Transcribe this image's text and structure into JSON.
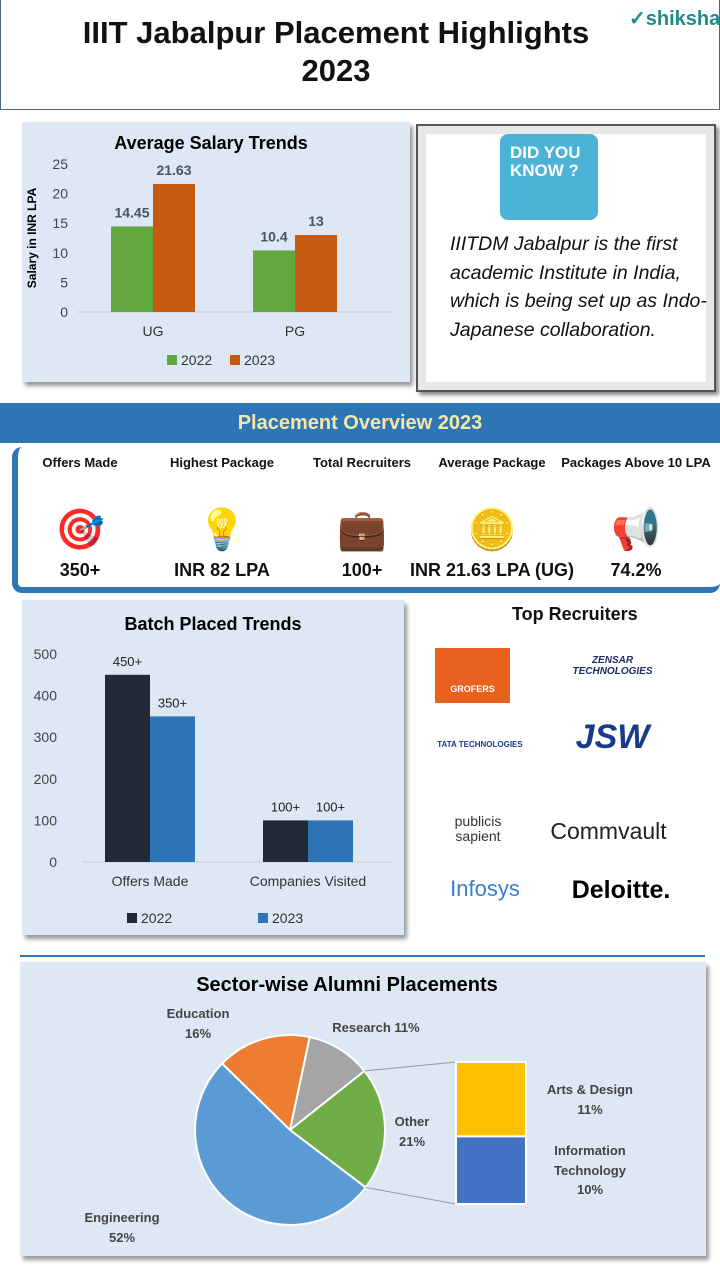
{
  "header": {
    "title": "IIIT Jabalpur Placement Highlights 2023",
    "logo_text": "shiksha"
  },
  "did_you_know": {
    "badge": "DID YOU KNOW ?",
    "text": "IIITDM Jabalpur is the first academic Institute in India, which is being set up as Indo-Japanese collaboration."
  },
  "overview": {
    "title": "Placement Overview 2023",
    "stats": [
      {
        "label": "Offers Made",
        "value": "350+",
        "icon": "target-icon"
      },
      {
        "label": "Highest Package",
        "value": "INR 82 LPA",
        "icon": "lightbulb-icon"
      },
      {
        "label": "Total Recruiters",
        "value": "100+",
        "icon": "briefcase-icon"
      },
      {
        "label": "Average Package",
        "value": "INR 21.63 LPA (UG)",
        "icon": "coins-icon"
      },
      {
        "label": "Packages Above 10 LPA",
        "value": "74.2%",
        "icon": "megaphone-icon"
      }
    ]
  },
  "recruiters": {
    "title": "Top Recruiters",
    "logos": [
      "GROFERS",
      "ZENSAR TECHNOLOGIES",
      "TATA TECHNOLOGIES",
      "JSW",
      "publicis sapient",
      "Commvault",
      "Infosys",
      "Deloitte."
    ]
  },
  "colors": {
    "c2022_salary": "#62a83e",
    "c2023_salary": "#c55a11",
    "c2022_batch": "#222a35",
    "c2023_batch": "#2e75b6",
    "banner": "#2e75b6"
  },
  "chart_data": [
    {
      "type": "bar",
      "title": "Average Salary Trends",
      "xlabel": "",
      "ylabel": "Salary in INR LPA",
      "ylim": [
        0,
        25
      ],
      "yticks": [
        "0",
        "5",
        "10",
        "15",
        "20",
        "25"
      ],
      "categories": [
        "UG",
        "PG"
      ],
      "series": [
        {
          "name": "2022",
          "values": [
            14.45,
            10.4
          ],
          "labels": [
            "14.45",
            "10.4"
          ]
        },
        {
          "name": "2023",
          "values": [
            21.63,
            13
          ],
          "labels": [
            "21.63",
            "13"
          ]
        }
      ],
      "legend": "bottom",
      "grid": false
    },
    {
      "type": "bar",
      "title": "Batch Placed Trends",
      "ylim": [
        0,
        500
      ],
      "yticks": [
        "0",
        "100",
        "200",
        "300",
        "400",
        "500"
      ],
      "categories": [
        "Offers Made",
        "Companies Visited"
      ],
      "series": [
        {
          "name": "2022",
          "values": [
            450,
            100
          ],
          "labels": [
            "450+",
            "100+"
          ]
        },
        {
          "name": "2023",
          "values": [
            350,
            100
          ],
          "labels": [
            "350+",
            "100+"
          ]
        }
      ],
      "legend": "bottom",
      "grid": false
    },
    {
      "type": "pie",
      "title": "Sector-wise Alumni Placements",
      "slices": [
        {
          "name": "Education",
          "value": 16,
          "label": "16%",
          "color": "#ed7d31"
        },
        {
          "name": "Research",
          "value": 11,
          "label": "11%",
          "color": "#a5a5a5"
        },
        {
          "name": "Other",
          "value": 21,
          "label": "21%",
          "color": "#70ad47"
        },
        {
          "name": "Engineering",
          "value": 52,
          "label": "52%",
          "color": "#5b9bd5"
        }
      ],
      "breakdown_of": "Other",
      "breakdown": [
        {
          "name": "Arts & Design",
          "value": 11,
          "label": "11%",
          "color": "#ffc000"
        },
        {
          "name": "Information Technology",
          "value": 10,
          "label": "10%",
          "color": "#4472c4"
        }
      ]
    }
  ]
}
